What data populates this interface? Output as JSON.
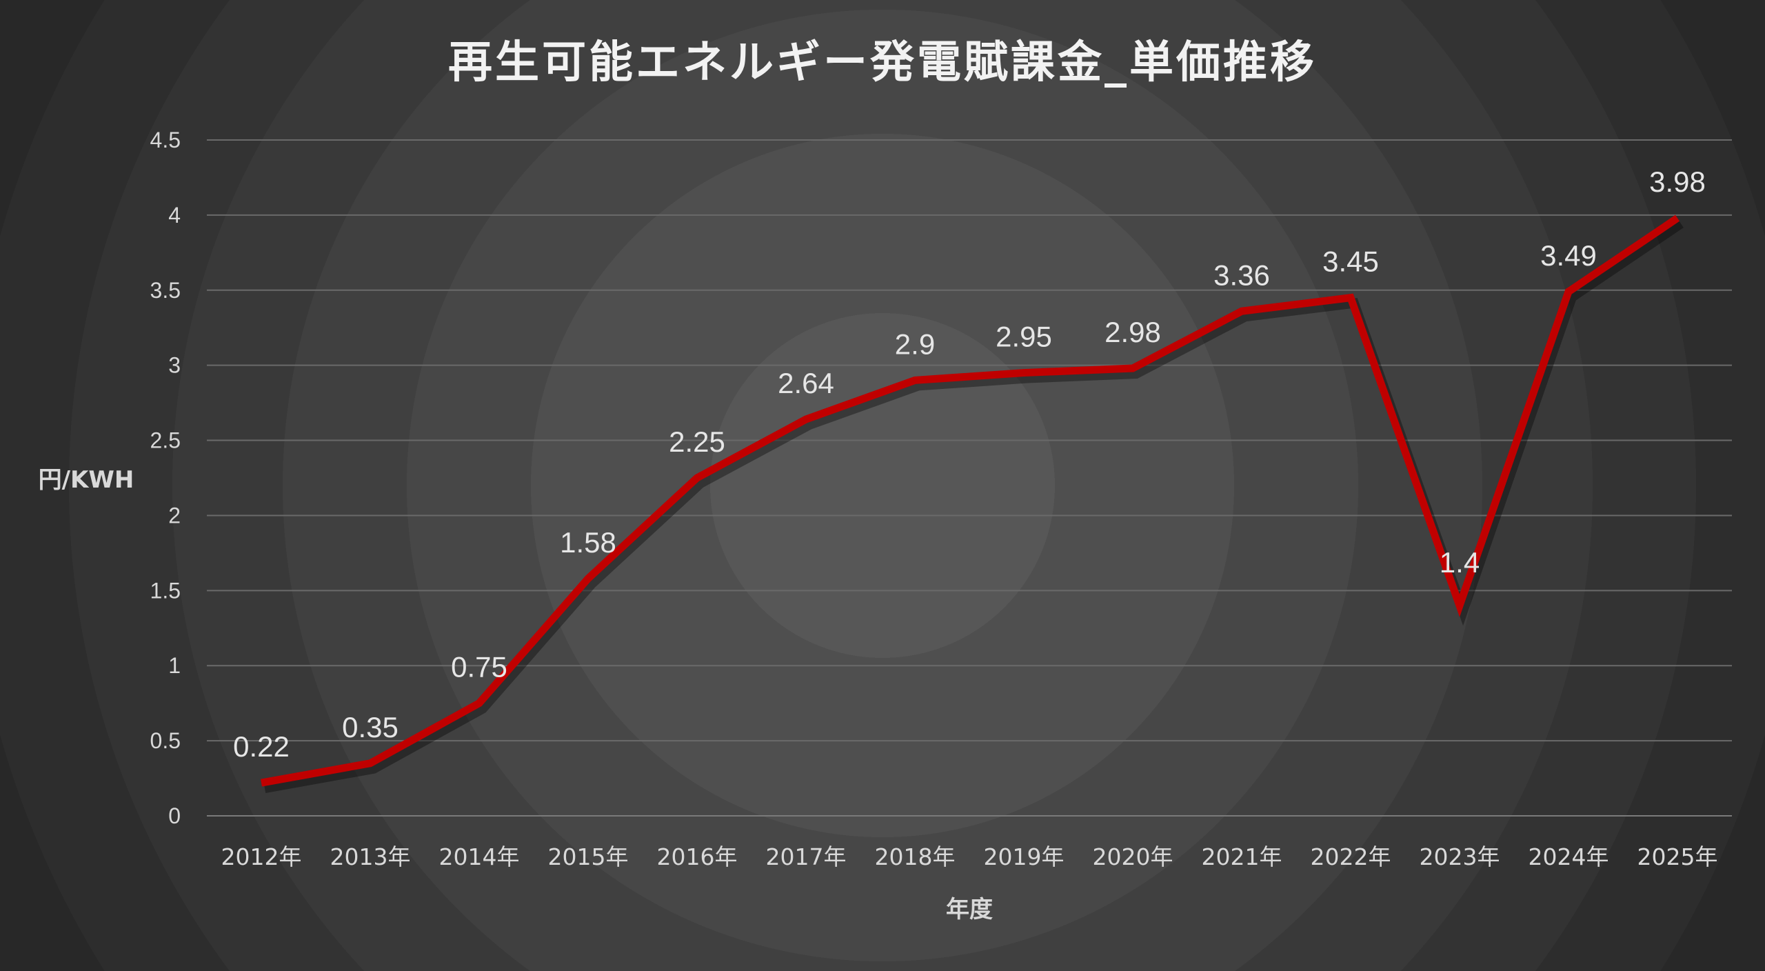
{
  "chart_data": {
    "type": "line",
    "title": "再生可能エネルギー発電賦課金_単価推移",
    "xlabel": "年度",
    "ylabel": "円/KWH",
    "categories": [
      "2012年",
      "2013年",
      "2014年",
      "2015年",
      "2016年",
      "2017年",
      "2018年",
      "2019年",
      "2020年",
      "2021年",
      "2022年",
      "2023年",
      "2024年",
      "2025年"
    ],
    "series": [
      {
        "values": [
          0.22,
          0.35,
          0.75,
          1.58,
          2.25,
          2.64,
          2.9,
          2.95,
          2.98,
          3.36,
          3.45,
          1.4,
          3.49,
          3.98
        ],
        "labels": [
          "0.22",
          "0.35",
          "0.75",
          "1.58",
          "2.25",
          "2.64",
          "2.9",
          "2.95",
          "2.98",
          "3.36",
          "3.45",
          "1.4",
          "3.49",
          "3.98"
        ],
        "color": "#c00000"
      }
    ],
    "ylim": [
      0,
      4.5
    ],
    "yticks": [
      "0",
      "0.5",
      "1",
      "1.5",
      "2",
      "2.5",
      "3",
      "3.5",
      "4",
      "4.5"
    ],
    "grid": true,
    "legend": "none"
  }
}
